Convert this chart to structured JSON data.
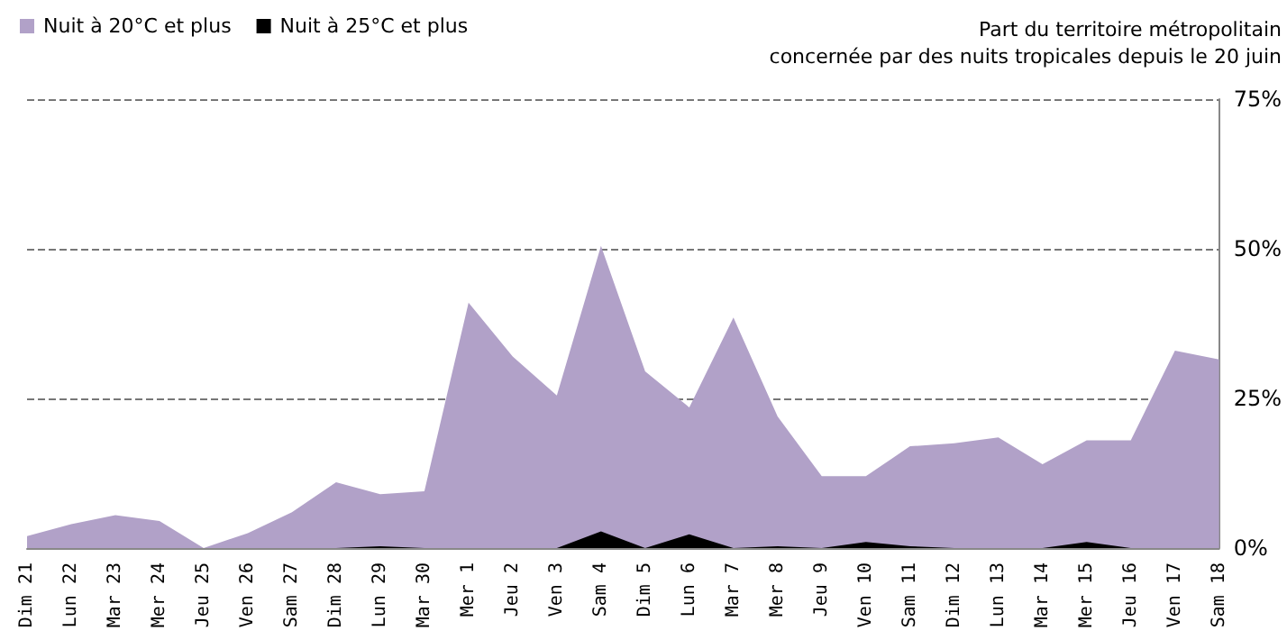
{
  "chart_data": {
    "type": "area",
    "title": "Part du territoire métropolitain\nconcernée par des nuits tropicales depuis le 20 juin",
    "categories": [
      "Dim 21",
      "Lun 22",
      "Mar 23",
      "Mer 24",
      "Jeu 25",
      "Ven 26",
      "Sam 27",
      "Dim 28",
      "Lun 29",
      "Mar 30",
      "Mer 1",
      "Jeu 2",
      "Ven 3",
      "Sam 4",
      "Dim 5",
      "Lun 6",
      "Mar 7",
      "Mer 8",
      "Jeu 9",
      "Ven 10",
      "Sam 11",
      "Dim 12",
      "Lun 13",
      "Mar 14",
      "Mer 15",
      "Jeu 16",
      "Ven 17",
      "Sam 18"
    ],
    "series": [
      {
        "name": "Nuit à 20°C et plus",
        "color": "#b1a1c8",
        "values": [
          2,
          4,
          5.5,
          4.5,
          0,
          2.5,
          6,
          11,
          9,
          9.5,
          41,
          32,
          25.5,
          50.5,
          29.5,
          23.5,
          38.5,
          22,
          12,
          12,
          17,
          17.5,
          18.5,
          14,
          18,
          18,
          33,
          31.5
        ]
      },
      {
        "name": "Nuit à 25°C et plus",
        "color": "#000000",
        "values": [
          0,
          0,
          0,
          0,
          0,
          0,
          0,
          0,
          0.3,
          0,
          0,
          0,
          0,
          2.8,
          0,
          2.3,
          0,
          0.3,
          0,
          1,
          0.3,
          0,
          0,
          0,
          1,
          0,
          0,
          0
        ]
      }
    ],
    "ylim": [
      0,
      75
    ],
    "yticks": [
      {
        "value": 0,
        "label": "0%"
      },
      {
        "value": 25,
        "label": "25%"
      },
      {
        "value": 50,
        "label": "50%"
      },
      {
        "value": 75,
        "label": "75%"
      }
    ],
    "grid": "y",
    "legend": "top left"
  }
}
